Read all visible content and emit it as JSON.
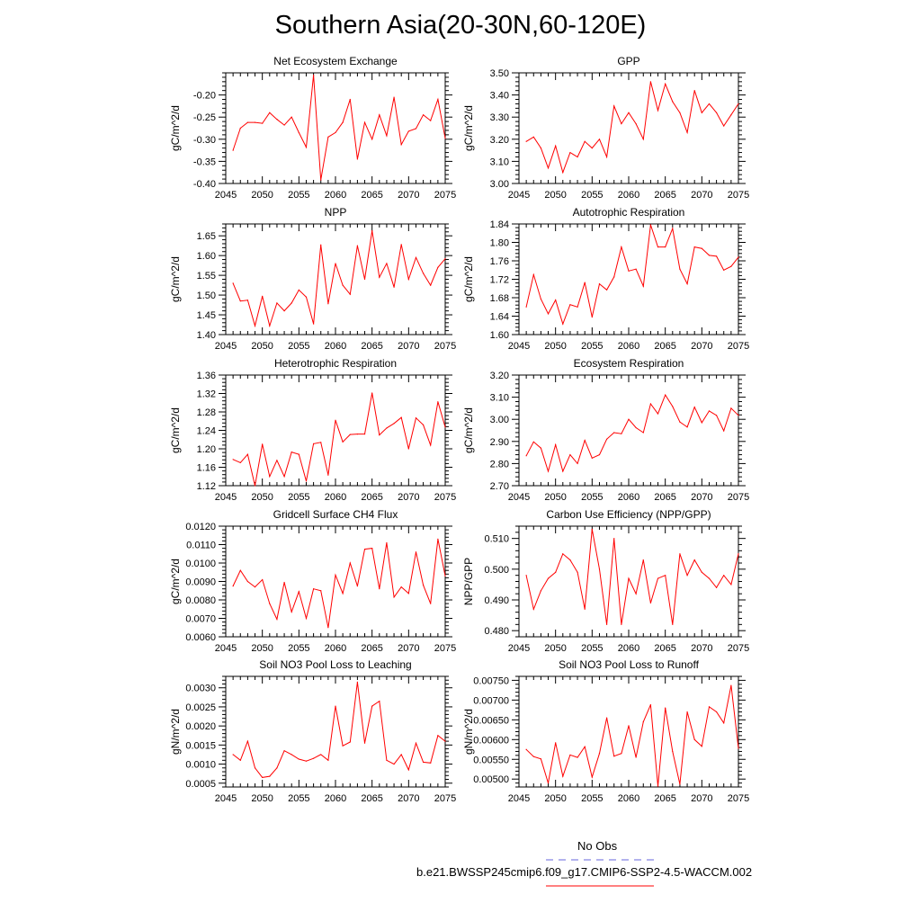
{
  "title": "Southern Asia(20-30N,60-120E)",
  "colors": {
    "series": "#ff0000",
    "obs": "#6666dd",
    "axis": "#000000"
  },
  "legend": {
    "obs_label": "No Obs",
    "model_label": "b.e21.BWSSP245cmip6.f09_g17.CMIP6-SSP2-4.5-WACCM.002"
  },
  "chart_data": [
    {
      "type": "line",
      "title": "Net Ecosystem Exchange",
      "ylabel": "gC/m^2/d",
      "xlim": [
        2045,
        2075
      ],
      "ylim": [
        -0.4,
        -0.15
      ],
      "yticks": [
        -0.4,
        -0.35,
        -0.3,
        -0.25,
        -0.2
      ],
      "ytick_labels": [
        "-0.40",
        "-0.35",
        "-0.30",
        "-0.25",
        "-0.20"
      ],
      "xticks": [
        2045,
        2050,
        2055,
        2060,
        2065,
        2070,
        2075
      ],
      "xtick_labels": [
        "2045",
        "2050",
        "2055",
        "2060",
        "2065",
        "2070",
        "2075"
      ],
      "x": [
        2046,
        2047,
        2048,
        2049,
        2050,
        2051,
        2052,
        2053,
        2054,
        2055,
        2056,
        2057,
        2058,
        2059,
        2060,
        2061,
        2062,
        2063,
        2064,
        2065,
        2066,
        2067,
        2068,
        2069,
        2070,
        2071,
        2072,
        2073,
        2074,
        2075
      ],
      "values": [
        -0.325,
        -0.275,
        -0.262,
        -0.262,
        -0.264,
        -0.24,
        -0.255,
        -0.268,
        -0.25,
        -0.285,
        -0.318,
        -0.155,
        -0.392,
        -0.295,
        -0.285,
        -0.262,
        -0.21,
        -0.345,
        -0.262,
        -0.3,
        -0.245,
        -0.292,
        -0.205,
        -0.312,
        -0.282,
        -0.276,
        -0.245,
        -0.258,
        -0.21,
        -0.298
      ]
    },
    {
      "type": "line",
      "title": "GPP",
      "ylabel": "gC/m^2/d",
      "xlim": [
        2045,
        2075
      ],
      "ylim": [
        3.0,
        3.5
      ],
      "yticks": [
        3.0,
        3.1,
        3.2,
        3.3,
        3.4,
        3.5
      ],
      "ytick_labels": [
        "3.00",
        "3.10",
        "3.20",
        "3.30",
        "3.40",
        "3.50"
      ],
      "xticks": [
        2045,
        2050,
        2055,
        2060,
        2065,
        2070,
        2075
      ],
      "xtick_labels": [
        "2045",
        "2050",
        "2055",
        "2060",
        "2065",
        "2070",
        "2075"
      ],
      "x": [
        2046,
        2047,
        2048,
        2049,
        2050,
        2051,
        2052,
        2053,
        2054,
        2055,
        2056,
        2057,
        2058,
        2059,
        2060,
        2061,
        2062,
        2063,
        2064,
        2065,
        2066,
        2067,
        2068,
        2069,
        2070,
        2071,
        2072,
        2073,
        2074,
        2075
      ],
      "values": [
        3.19,
        3.21,
        3.16,
        3.07,
        3.17,
        3.05,
        3.14,
        3.12,
        3.19,
        3.16,
        3.2,
        3.12,
        3.35,
        3.27,
        3.32,
        3.27,
        3.2,
        3.46,
        3.33,
        3.45,
        3.37,
        3.32,
        3.23,
        3.42,
        3.32,
        3.36,
        3.32,
        3.26,
        3.31,
        3.36
      ]
    },
    {
      "type": "line",
      "title": "NPP",
      "ylabel": "gC/m^2/d",
      "xlim": [
        2045,
        2075
      ],
      "ylim": [
        1.4,
        1.68
      ],
      "yticks": [
        1.4,
        1.45,
        1.5,
        1.55,
        1.6,
        1.65
      ],
      "ytick_labels": [
        "1.40",
        "1.45",
        "1.50",
        "1.55",
        "1.60",
        "1.65"
      ],
      "xticks": [
        2045,
        2050,
        2055,
        2060,
        2065,
        2070,
        2075
      ],
      "xtick_labels": [
        "2045",
        "2050",
        "2055",
        "2060",
        "2065",
        "2070",
        "2075"
      ],
      "x": [
        2046,
        2047,
        2048,
        2049,
        2050,
        2051,
        2052,
        2053,
        2054,
        2055,
        2056,
        2057,
        2058,
        2059,
        2060,
        2061,
        2062,
        2063,
        2064,
        2065,
        2066,
        2067,
        2068,
        2069,
        2070,
        2071,
        2072,
        2073,
        2074,
        2075
      ],
      "values": [
        1.53,
        1.485,
        1.487,
        1.422,
        1.497,
        1.422,
        1.48,
        1.46,
        1.48,
        1.513,
        1.495,
        1.427,
        1.627,
        1.478,
        1.58,
        1.525,
        1.502,
        1.625,
        1.54,
        1.663,
        1.545,
        1.58,
        1.52,
        1.628,
        1.54,
        1.595,
        1.555,
        1.525,
        1.57,
        1.592
      ]
    },
    {
      "type": "line",
      "title": "Autotrophic Respiration",
      "ylabel": "gC/m^2/d",
      "xlim": [
        2045,
        2075
      ],
      "ylim": [
        1.6,
        1.84
      ],
      "yticks": [
        1.6,
        1.64,
        1.68,
        1.72,
        1.76,
        1.8,
        1.84
      ],
      "ytick_labels": [
        "1.60",
        "1.64",
        "1.68",
        "1.72",
        "1.76",
        "1.80",
        "1.84"
      ],
      "xticks": [
        2045,
        2050,
        2055,
        2060,
        2065,
        2070,
        2075
      ],
      "xtick_labels": [
        "2045",
        "2050",
        "2055",
        "2060",
        "2065",
        "2070",
        "2075"
      ],
      "x": [
        2046,
        2047,
        2048,
        2049,
        2050,
        2051,
        2052,
        2053,
        2054,
        2055,
        2056,
        2057,
        2058,
        2059,
        2060,
        2061,
        2062,
        2063,
        2064,
        2065,
        2066,
        2067,
        2068,
        2069,
        2070,
        2071,
        2072,
        2073,
        2074,
        2075
      ],
      "values": [
        1.66,
        1.73,
        1.677,
        1.645,
        1.675,
        1.623,
        1.665,
        1.66,
        1.713,
        1.638,
        1.71,
        1.697,
        1.725,
        1.79,
        1.738,
        1.742,
        1.705,
        1.838,
        1.79,
        1.79,
        1.83,
        1.742,
        1.71,
        1.79,
        1.787,
        1.772,
        1.77,
        1.74,
        1.748,
        1.768
      ]
    },
    {
      "type": "line",
      "title": "Heterotrophic Respiration",
      "ylabel": "gC/m^2/d",
      "xlim": [
        2045,
        2075
      ],
      "ylim": [
        1.12,
        1.36
      ],
      "yticks": [
        1.12,
        1.16,
        1.2,
        1.24,
        1.28,
        1.32,
        1.36
      ],
      "ytick_labels": [
        "1.12",
        "1.16",
        "1.20",
        "1.24",
        "1.28",
        "1.32",
        "1.36"
      ],
      "xticks": [
        2045,
        2050,
        2055,
        2060,
        2065,
        2070,
        2075
      ],
      "xtick_labels": [
        "2045",
        "2050",
        "2055",
        "2060",
        "2065",
        "2070",
        "2075"
      ],
      "x": [
        2046,
        2047,
        2048,
        2049,
        2050,
        2051,
        2052,
        2053,
        2054,
        2055,
        2056,
        2057,
        2058,
        2059,
        2060,
        2061,
        2062,
        2063,
        2064,
        2065,
        2066,
        2067,
        2068,
        2069,
        2070,
        2071,
        2072,
        2073,
        2074,
        2075
      ],
      "values": [
        1.177,
        1.17,
        1.188,
        1.12,
        1.21,
        1.14,
        1.175,
        1.14,
        1.193,
        1.188,
        1.13,
        1.211,
        1.214,
        1.143,
        1.262,
        1.215,
        1.231,
        1.232,
        1.232,
        1.321,
        1.23,
        1.245,
        1.255,
        1.268,
        1.2,
        1.267,
        1.252,
        1.208,
        1.302,
        1.247
      ]
    },
    {
      "type": "line",
      "title": "Ecosystem Respiration",
      "ylabel": "gC/m^2/d",
      "xlim": [
        2045,
        2075
      ],
      "ylim": [
        2.7,
        3.2
      ],
      "yticks": [
        2.7,
        2.8,
        2.9,
        3.0,
        3.1,
        3.2
      ],
      "ytick_labels": [
        "2.70",
        "2.80",
        "2.90",
        "3.00",
        "3.10",
        "3.20"
      ],
      "xticks": [
        2045,
        2050,
        2055,
        2060,
        2065,
        2070,
        2075
      ],
      "xtick_labels": [
        "2045",
        "2050",
        "2055",
        "2060",
        "2065",
        "2070",
        "2075"
      ],
      "x": [
        2046,
        2047,
        2048,
        2049,
        2050,
        2051,
        2052,
        2053,
        2054,
        2055,
        2056,
        2057,
        2058,
        2059,
        2060,
        2061,
        2062,
        2063,
        2064,
        2065,
        2066,
        2067,
        2068,
        2069,
        2070,
        2071,
        2072,
        2073,
        2074,
        2075
      ],
      "values": [
        2.835,
        2.898,
        2.87,
        2.765,
        2.885,
        2.765,
        2.84,
        2.8,
        2.905,
        2.825,
        2.84,
        2.91,
        2.94,
        2.935,
        3.0,
        2.962,
        2.94,
        3.07,
        3.025,
        3.11,
        3.058,
        2.988,
        2.965,
        3.055,
        2.985,
        3.038,
        3.018,
        2.948,
        3.05,
        3.018
      ]
    },
    {
      "type": "line",
      "title": "Gridcell Surface CH4 Flux",
      "ylabel": "gC/m^2/d",
      "xlim": [
        2045,
        2075
      ],
      "ylim": [
        0.006,
        0.012
      ],
      "yticks": [
        0.006,
        0.007,
        0.008,
        0.009,
        0.01,
        0.011,
        0.012
      ],
      "ytick_labels": [
        "0.0060",
        "0.0070",
        "0.0080",
        "0.0090",
        "0.0100",
        "0.0110",
        "0.0120"
      ],
      "xticks": [
        2045,
        2050,
        2055,
        2060,
        2065,
        2070,
        2075
      ],
      "xtick_labels": [
        "2045",
        "2050",
        "2055",
        "2060",
        "2065",
        "2070",
        "2075"
      ],
      "x": [
        2046,
        2047,
        2048,
        2049,
        2050,
        2051,
        2052,
        2053,
        2054,
        2055,
        2056,
        2057,
        2058,
        2059,
        2060,
        2061,
        2062,
        2063,
        2064,
        2065,
        2066,
        2067,
        2068,
        2069,
        2070,
        2071,
        2072,
        2073,
        2074,
        2075
      ],
      "values": [
        0.00875,
        0.0096,
        0.009,
        0.0087,
        0.0091,
        0.0078,
        0.00695,
        0.00895,
        0.00735,
        0.00845,
        0.007,
        0.0086,
        0.0085,
        0.0065,
        0.00935,
        0.00835,
        0.01,
        0.00875,
        0.01075,
        0.0108,
        0.0086,
        0.0111,
        0.00815,
        0.0087,
        0.00835,
        0.0106,
        0.0088,
        0.0078,
        0.0113,
        0.0093
      ]
    },
    {
      "type": "line",
      "title": "Carbon Use Efficiency (NPP/GPP)",
      "ylabel": "NPP/GPP",
      "xlim": [
        2045,
        2075
      ],
      "ylim": [
        0.478,
        0.514
      ],
      "yticks": [
        0.48,
        0.49,
        0.5,
        0.51
      ],
      "ytick_labels": [
        "0.480",
        "0.490",
        "0.500",
        "0.510"
      ],
      "xticks": [
        2045,
        2050,
        2055,
        2060,
        2065,
        2070,
        2075
      ],
      "xtick_labels": [
        "2045",
        "2050",
        "2055",
        "2060",
        "2065",
        "2070",
        "2075"
      ],
      "x": [
        2046,
        2047,
        2048,
        2049,
        2050,
        2051,
        2052,
        2053,
        2054,
        2055,
        2056,
        2057,
        2058,
        2059,
        2060,
        2061,
        2062,
        2063,
        2064,
        2065,
        2066,
        2067,
        2068,
        2069,
        2070,
        2071,
        2072,
        2073,
        2074,
        2075
      ],
      "values": [
        0.498,
        0.487,
        0.493,
        0.497,
        0.499,
        0.505,
        0.503,
        0.499,
        0.487,
        0.513,
        0.5,
        0.482,
        0.51,
        0.482,
        0.497,
        0.492,
        0.503,
        0.489,
        0.497,
        0.498,
        0.482,
        0.505,
        0.498,
        0.503,
        0.499,
        0.497,
        0.494,
        0.498,
        0.495,
        0.505
      ]
    },
    {
      "type": "line",
      "title": "Soil NO3 Pool Loss to Leaching",
      "ylabel": "gN/m^2/d",
      "xlim": [
        2045,
        2075
      ],
      "ylim": [
        0.0004,
        0.0033
      ],
      "yticks": [
        0.0005,
        0.001,
        0.0015,
        0.002,
        0.0025,
        0.003
      ],
      "ytick_labels": [
        "0.0005",
        "0.0010",
        "0.0015",
        "0.0020",
        "0.0025",
        "0.0030"
      ],
      "xticks": [
        2045,
        2050,
        2055,
        2060,
        2065,
        2070,
        2075
      ],
      "xtick_labels": [
        "2045",
        "2050",
        "2055",
        "2060",
        "2065",
        "2070",
        "2075"
      ],
      "x": [
        2046,
        2047,
        2048,
        2049,
        2050,
        2051,
        2052,
        2053,
        2054,
        2055,
        2056,
        2057,
        2058,
        2059,
        2060,
        2061,
        2062,
        2063,
        2064,
        2065,
        2066,
        2067,
        2068,
        2069,
        2070,
        2071,
        2072,
        2073,
        2074,
        2075
      ],
      "values": [
        0.00125,
        0.0011,
        0.0016,
        0.0009,
        0.00065,
        0.00068,
        0.0009,
        0.00135,
        0.00125,
        0.00113,
        0.00108,
        0.00115,
        0.00125,
        0.0011,
        0.00252,
        0.00148,
        0.00158,
        0.00315,
        0.00155,
        0.00252,
        0.00265,
        0.0011,
        0.001,
        0.00125,
        0.00085,
        0.00155,
        0.00105,
        0.00103,
        0.00175,
        0.0016
      ]
    },
    {
      "type": "line",
      "title": "Soil NO3 Pool Loss to Runoff",
      "ylabel": "gN/m^2/d",
      "xlim": [
        2045,
        2075
      ],
      "ylim": [
        0.0048,
        0.0076
      ],
      "yticks": [
        0.005,
        0.0055,
        0.006,
        0.0065,
        0.007,
        0.0075
      ],
      "ytick_labels": [
        "0.00500",
        "0.00550",
        "0.00600",
        "0.00650",
        "0.00700",
        "0.00750"
      ],
      "xticks": [
        2045,
        2050,
        2055,
        2060,
        2065,
        2070,
        2075
      ],
      "xtick_labels": [
        "2045",
        "2050",
        "2055",
        "2060",
        "2065",
        "2070",
        "2075"
      ],
      "x": [
        2046,
        2047,
        2048,
        2049,
        2050,
        2051,
        2052,
        2053,
        2054,
        2055,
        2056,
        2057,
        2058,
        2059,
        2060,
        2061,
        2062,
        2063,
        2064,
        2065,
        2066,
        2067,
        2068,
        2069,
        2070,
        2071,
        2072,
        2073,
        2074,
        2075
      ],
      "values": [
        0.00575,
        0.00557,
        0.00551,
        0.0049,
        0.00592,
        0.00507,
        0.00561,
        0.00555,
        0.00582,
        0.00505,
        0.00565,
        0.00655,
        0.00558,
        0.00565,
        0.00635,
        0.00555,
        0.00645,
        0.00688,
        0.00482,
        0.0068,
        0.0057,
        0.00487,
        0.0067,
        0.006,
        0.00583,
        0.00683,
        0.0067,
        0.00642,
        0.00737,
        0.00578
      ]
    }
  ]
}
